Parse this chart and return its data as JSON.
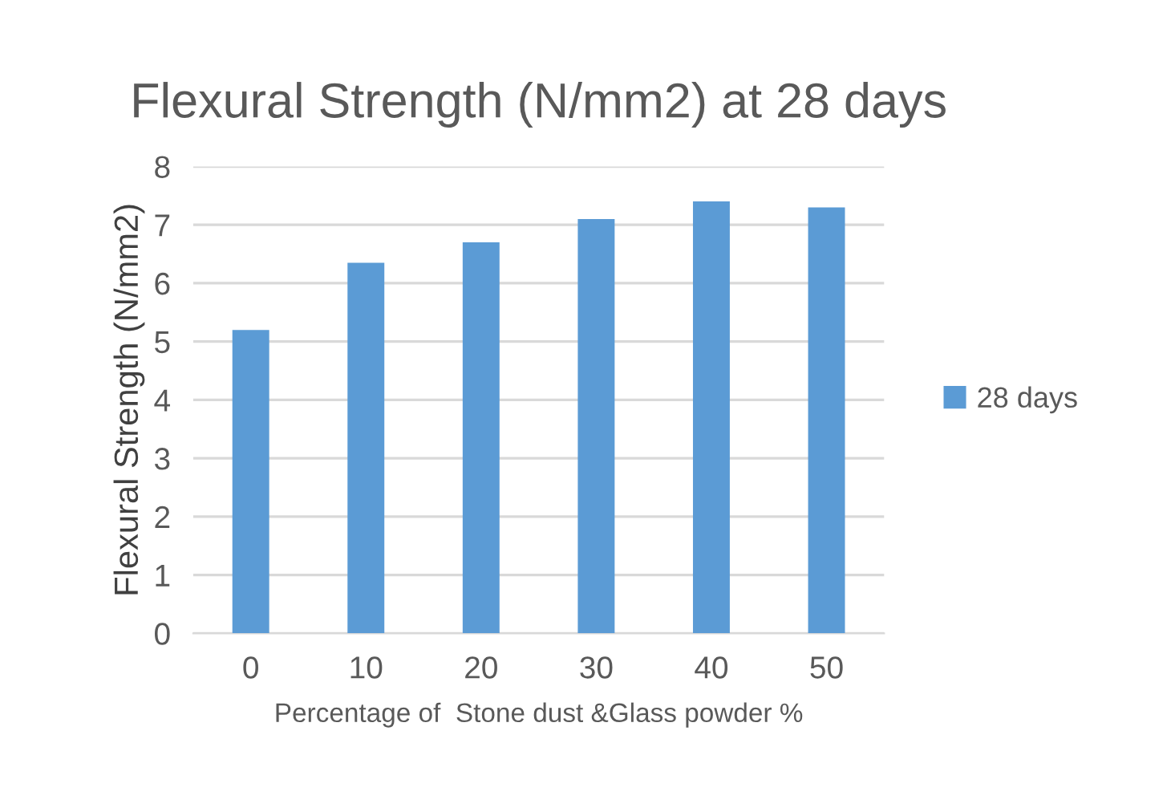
{
  "chart_data": {
    "type": "bar",
    "title": "Flexural Strength (N/mm2) at 28 days",
    "xlabel": "Percentage of  Stone dust &Glass powder %",
    "ylabel": "Flexural Strength (N/mm2)",
    "categories": [
      "0",
      "10",
      "20",
      "30",
      "40",
      "50"
    ],
    "series": [
      {
        "name": "28 days",
        "color": "#5b9bd5",
        "values": [
          5.2,
          6.35,
          6.7,
          7.1,
          7.4,
          7.3
        ]
      }
    ],
    "ylim": [
      0,
      8
    ],
    "yticks": [
      0,
      1,
      2,
      3,
      4,
      5,
      6,
      7,
      8
    ],
    "grid": "y",
    "legend": "right"
  }
}
